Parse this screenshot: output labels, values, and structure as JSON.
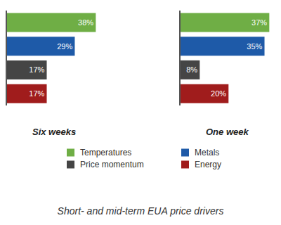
{
  "chart_data": {
    "type": "bar",
    "title": "Short- and mid-term EUA price drivers",
    "categories": [
      "Six weeks",
      "One week"
    ],
    "orientation": "horizontal",
    "data_labels": true,
    "tick_labels": false,
    "legend": "bottom",
    "series": [
      {
        "name": "Temperatures",
        "color": "#6fae45",
        "values": [
          38,
          37
        ],
        "value_labels": [
          "38%",
          "37%"
        ]
      },
      {
        "name": "Metals",
        "color": "#1e5aa8",
        "values": [
          29,
          35
        ],
        "value_labels": [
          "29%",
          "35%"
        ]
      },
      {
        "name": "Price momentum",
        "color": "#454545",
        "values": [
          17,
          8
        ],
        "value_labels": [
          "17%",
          "8%"
        ]
      },
      {
        "name": "Energy",
        "color": "#a01c1c",
        "values": [
          17,
          20
        ],
        "value_labels": [
          "17%",
          "20%"
        ]
      }
    ]
  }
}
